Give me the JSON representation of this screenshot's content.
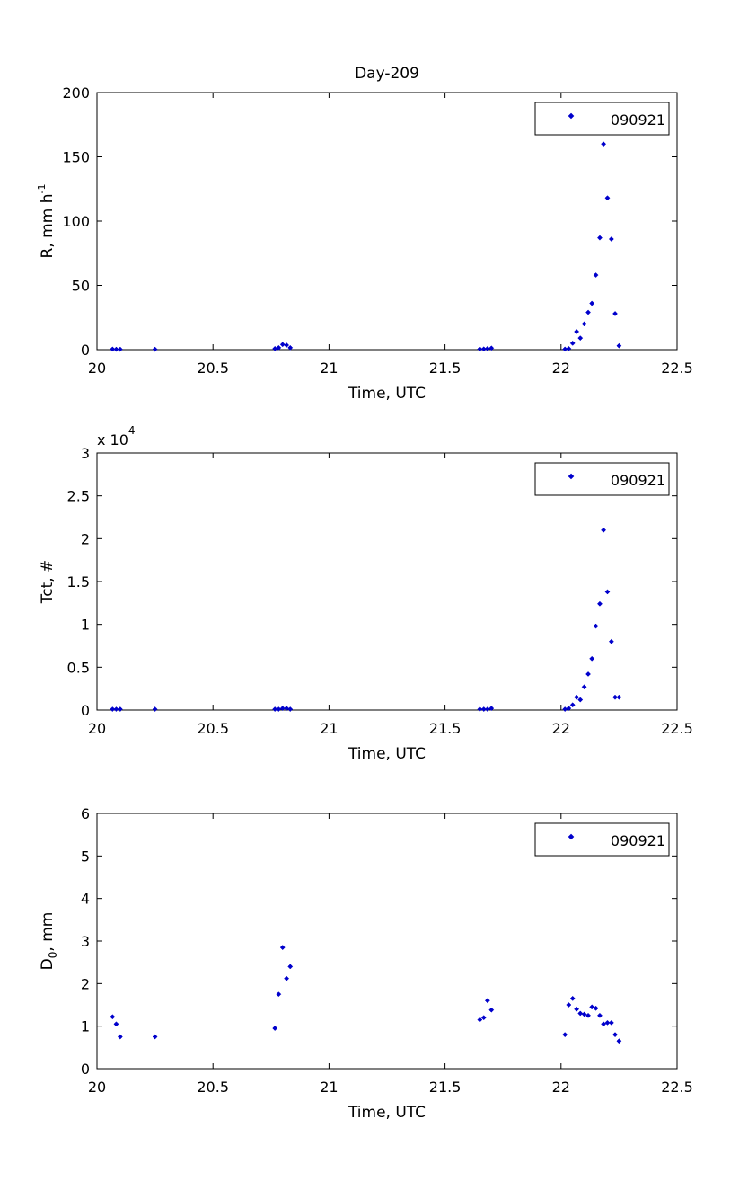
{
  "chart_data": [
    {
      "type": "scatter",
      "title": "Day-209",
      "xlabel": "Time, UTC",
      "ylabel": "R, mm h",
      "ylabel_sup": "-1",
      "xlim": [
        20,
        22.5
      ],
      "ylim": [
        0,
        200
      ],
      "xticks": [
        "20",
        "20.5",
        "21",
        "21.5",
        "22",
        "22.5"
      ],
      "yticks": [
        "0",
        "50",
        "100",
        "150",
        "200"
      ],
      "exponent_label": "",
      "exponent_sup": "",
      "legend": "top-right",
      "grid": false,
      "series": [
        {
          "name": "090921",
          "color": "#0000cc",
          "marker": "point",
          "x": [
            20.067,
            20.083,
            20.1,
            20.25,
            20.767,
            20.783,
            20.8,
            20.817,
            20.833,
            21.65,
            21.667,
            21.683,
            21.7,
            22.017,
            22.033,
            22.05,
            22.067,
            22.083,
            22.1,
            22.117,
            22.133,
            22.15,
            22.167,
            22.183,
            22.2,
            22.217,
            22.233,
            22.25
          ],
          "y": [
            0.4,
            0.3,
            0.3,
            0.3,
            0.8,
            1.5,
            4.0,
            3.5,
            1.5,
            0.5,
            0.5,
            0.8,
            1.2,
            0.4,
            0.8,
            5,
            14,
            9,
            20,
            29,
            36,
            58,
            87,
            160,
            118,
            86,
            28,
            3
          ]
        }
      ]
    },
    {
      "type": "scatter",
      "title": "",
      "xlabel": "Time, UTC",
      "ylabel": "Tct, #",
      "ylabel_sup": "",
      "xlim": [
        20,
        22.5
      ],
      "ylim": [
        0,
        3
      ],
      "xticks": [
        "20",
        "20.5",
        "21",
        "21.5",
        "22",
        "22.5"
      ],
      "yticks": [
        "0",
        "0.5",
        "1",
        "1.5",
        "2",
        "2.5",
        "3"
      ],
      "exponent_label": "x 10",
      "exponent_sup": "4",
      "legend": "top-right",
      "grid": false,
      "series": [
        {
          "name": "090921",
          "color": "#0000cc",
          "marker": "point",
          "x": [
            20.067,
            20.083,
            20.1,
            20.25,
            20.767,
            20.783,
            20.8,
            20.817,
            20.833,
            21.65,
            21.667,
            21.683,
            21.7,
            22.017,
            22.033,
            22.05,
            22.067,
            22.083,
            22.1,
            22.117,
            22.133,
            22.15,
            22.167,
            22.183,
            22.2,
            22.217,
            22.233,
            22.25
          ],
          "y": [
            0.01,
            0.01,
            0.01,
            0.01,
            0.01,
            0.01,
            0.02,
            0.02,
            0.01,
            0.01,
            0.01,
            0.01,
            0.02,
            0.01,
            0.02,
            0.06,
            0.15,
            0.12,
            0.27,
            0.42,
            0.6,
            0.98,
            1.24,
            2.1,
            1.38,
            0.8,
            0.15,
            0.15
          ]
        }
      ]
    },
    {
      "type": "scatter",
      "title": "",
      "xlabel": "Time, UTC",
      "ylabel": "D",
      "ylabel_sub": "0",
      "ylabel_after": ", mm",
      "ylabel_sup": "",
      "xlim": [
        20,
        22.5
      ],
      "ylim": [
        0,
        6
      ],
      "xticks": [
        "20",
        "20.5",
        "21",
        "21.5",
        "22",
        "22.5"
      ],
      "yticks": [
        "0",
        "1",
        "2",
        "3",
        "4",
        "5",
        "6"
      ],
      "exponent_label": "",
      "exponent_sup": "",
      "legend": "top-right",
      "grid": false,
      "series": [
        {
          "name": "090921",
          "color": "#0000cc",
          "marker": "point",
          "x": [
            20.067,
            20.083,
            20.1,
            20.25,
            20.767,
            20.783,
            20.8,
            20.817,
            20.833,
            21.65,
            21.667,
            21.683,
            21.7,
            22.017,
            22.033,
            22.05,
            22.067,
            22.083,
            22.1,
            22.117,
            22.133,
            22.15,
            22.167,
            22.183,
            22.2,
            22.217,
            22.233,
            22.25
          ],
          "y": [
            1.22,
            1.05,
            0.75,
            0.75,
            0.95,
            1.75,
            2.85,
            2.12,
            2.4,
            1.15,
            1.2,
            1.6,
            1.38,
            0.8,
            1.5,
            1.65,
            1.4,
            1.3,
            1.28,
            1.25,
            1.45,
            1.42,
            1.25,
            1.05,
            1.08,
            1.08,
            0.8,
            0.65
          ]
        }
      ]
    }
  ]
}
